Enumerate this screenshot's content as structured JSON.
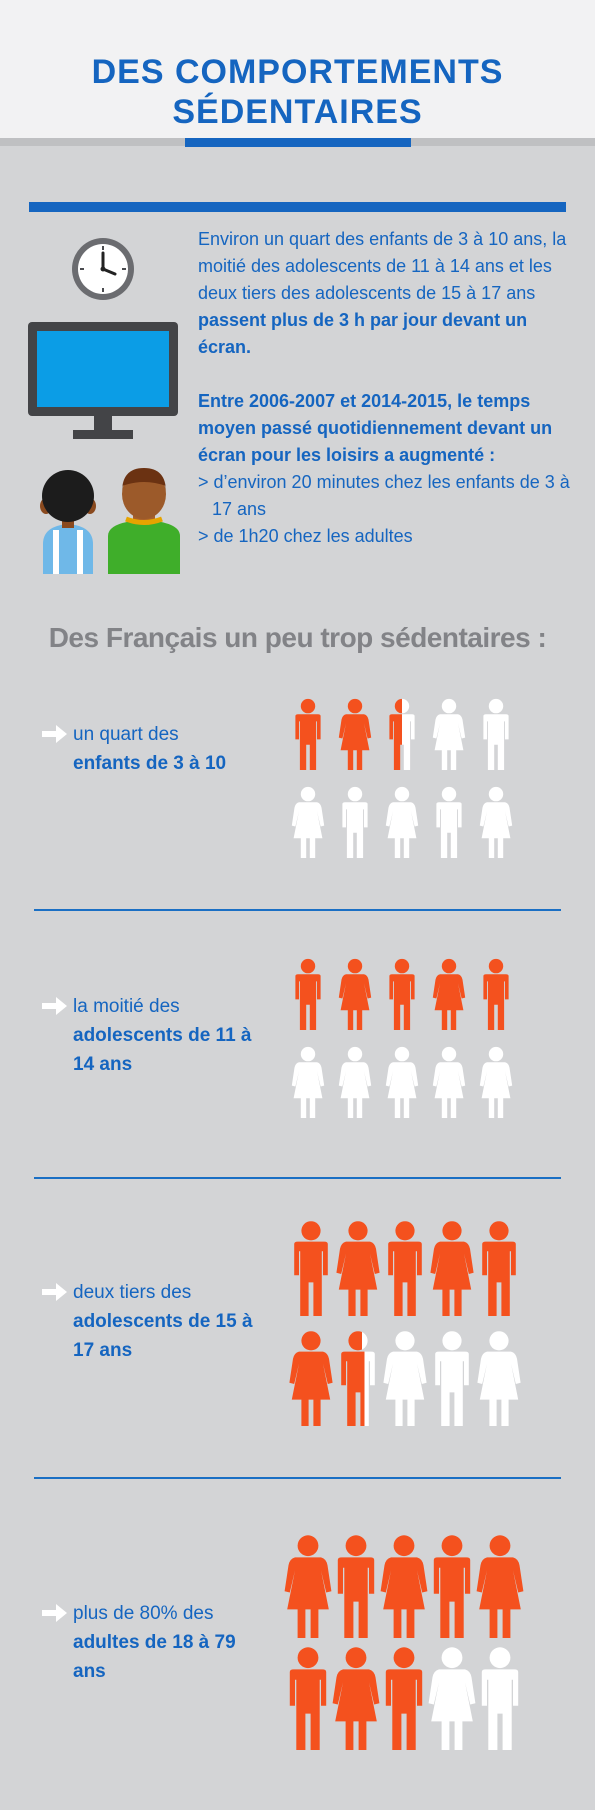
{
  "header": {
    "title_line1": "DES COMPORTEMENTS",
    "title_line2": "SÉDENTAIRES"
  },
  "intro": {
    "p1_plain": "Environ un quart des enfants de 3 à 10 ans, la moitié des adolescents de 11 à 14 ans et les deux tiers des adolescents de 15 à 17 ans ",
    "p1_bold": "passent plus de 3 h par jour devant un écran.",
    "p2_bold": "Entre 2006-2007 et 2014-2015, le temps moyen passé quotidiennement devant un écran pour les loisirs a augmenté :",
    "list": [
      "> d’environ 20 minutes chez les enfants de 3 à 17 ans",
      "> de 1h20 chez les adultes"
    ]
  },
  "colors": {
    "accent": "#1565c0",
    "highlight": "#f4511e",
    "figure_off": "#ffffff",
    "background": "#d3d4d6"
  },
  "section_heading": "Des Français un peu trop sédentaires :",
  "stats": [
    {
      "line1": "un quart des",
      "bold": "enfants de 3 à 10",
      "filled_fraction": 0.25,
      "figure_count": 10
    },
    {
      "line1": "la moitié des",
      "bold": "adolescents de 11 à 14 ans",
      "filled_fraction": 0.5,
      "figure_count": 10
    },
    {
      "line1": "deux tiers des",
      "bold": "adolescents de 15 à 17 ans",
      "filled_fraction": 0.67,
      "figure_count": 10
    },
    {
      "line1": "plus de 80% des",
      "bold": "adultes de 18 à 79 ans",
      "filled_fraction": 0.8,
      "figure_count": 10
    }
  ]
}
